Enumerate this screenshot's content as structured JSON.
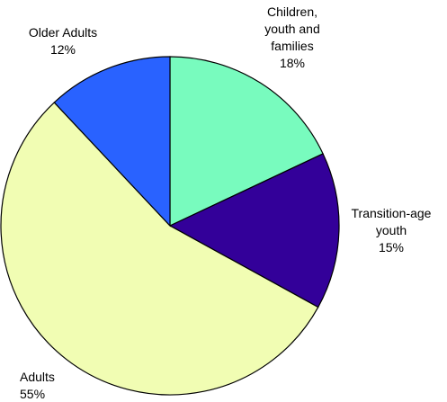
{
  "chart_data": {
    "type": "pie",
    "slices": [
      {
        "label_lines": [
          "Children,",
          "youth and",
          "families"
        ],
        "percent_label": "18%",
        "value": 18,
        "color": "#78FBBE"
      },
      {
        "label_lines": [
          "Transition-age",
          "youth"
        ],
        "percent_label": "15%",
        "value": 15,
        "color": "#330099"
      },
      {
        "label_lines": [
          "Adults"
        ],
        "percent_label": "55%",
        "value": 55,
        "color": "#F1FDB3"
      },
      {
        "label_lines": [
          "Older Adults"
        ],
        "percent_label": "12%",
        "value": 12,
        "color": "#2962FF"
      }
    ]
  }
}
